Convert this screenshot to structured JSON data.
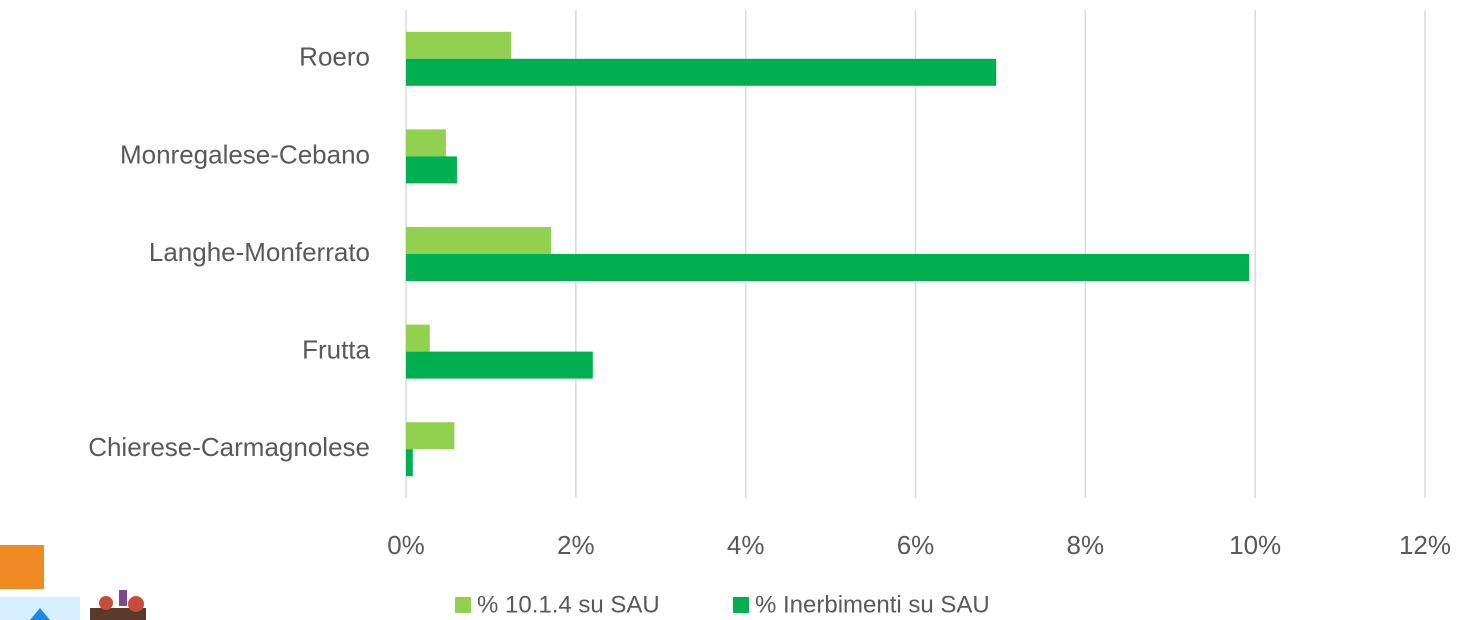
{
  "chart_data": {
    "type": "bar",
    "orientation": "horizontal",
    "categories": [
      "Roero",
      "Monregalese-Cebano",
      "Langhe-Monferrato",
      "Frutta",
      "Chierese-Carmagnolese"
    ],
    "series": [
      {
        "name": "% 10.1.4 su SAU",
        "color": "#92d050",
        "values": [
          1.24,
          0.47,
          1.71,
          0.28,
          0.57
        ]
      },
      {
        "name": "% Inerbimenti su SAU",
        "color": "#00b050",
        "values": [
          6.95,
          0.6,
          9.93,
          2.2,
          0.08
        ]
      }
    ],
    "xlim": [
      0,
      12
    ],
    "xticks": [
      {
        "value": 0,
        "label": "0%"
      },
      {
        "value": 2,
        "label": "2%"
      },
      {
        "value": 4,
        "label": "4%"
      },
      {
        "value": 6,
        "label": "6%"
      },
      {
        "value": 8,
        "label": "8%"
      },
      {
        "value": 10,
        "label": "10%"
      },
      {
        "value": 12,
        "label": "12%"
      }
    ],
    "grid": true,
    "legend": "bottom"
  }
}
